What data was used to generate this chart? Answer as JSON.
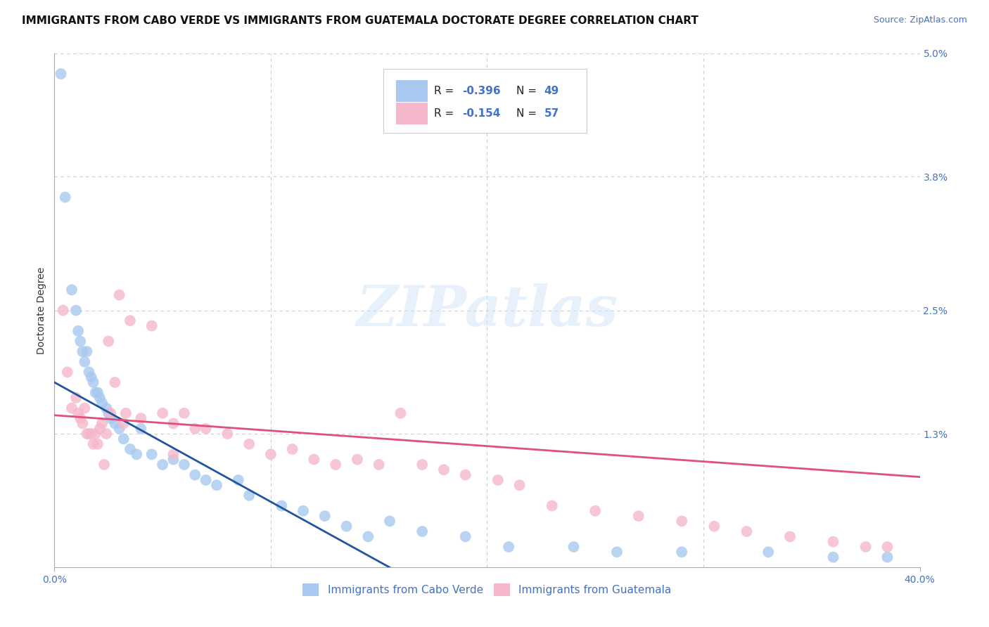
{
  "title": "IMMIGRANTS FROM CABO VERDE VS IMMIGRANTS FROM GUATEMALA DOCTORATE DEGREE CORRELATION CHART",
  "source": "Source: ZipAtlas.com",
  "ylabel": "Doctorate Degree",
  "xlim": [
    0.0,
    40.0
  ],
  "ylim": [
    0.0,
    5.0
  ],
  "x_ticks": [
    0.0,
    40.0
  ],
  "x_tick_labels": [
    "0.0%",
    "40.0%"
  ],
  "y_ticks": [
    1.3,
    2.5,
    3.8,
    5.0
  ],
  "y_tick_labels": [
    "1.3%",
    "2.5%",
    "3.8%",
    "5.0%"
  ],
  "legend_labels": [
    "Immigrants from Cabo Verde",
    "Immigrants from Guatemala"
  ],
  "watermark": "ZIPatlas",
  "blue_color": "#A8C8F0",
  "pink_color": "#F5B8CA",
  "blue_line_color": "#2255A0",
  "pink_line_color": "#E0507A",
  "cabo_verde_x": [
    0.3,
    0.5,
    0.8,
    1.0,
    1.1,
    1.2,
    1.3,
    1.4,
    1.5,
    1.6,
    1.7,
    1.8,
    1.9,
    2.0,
    2.1,
    2.2,
    2.4,
    2.5,
    2.6,
    2.8,
    3.0,
    3.2,
    3.5,
    3.8,
    4.0,
    4.5,
    5.0,
    5.5,
    6.0,
    6.5,
    7.0,
    7.5,
    8.5,
    9.0,
    10.5,
    11.5,
    12.5,
    13.5,
    14.5,
    15.5,
    17.0,
    19.0,
    21.0,
    24.0,
    26.0,
    29.0,
    33.0,
    36.0,
    38.5
  ],
  "cabo_verde_y": [
    4.8,
    3.6,
    2.7,
    2.5,
    2.3,
    2.2,
    2.1,
    2.0,
    2.1,
    1.9,
    1.85,
    1.8,
    1.7,
    1.7,
    1.65,
    1.6,
    1.55,
    1.5,
    1.45,
    1.4,
    1.35,
    1.25,
    1.15,
    1.1,
    1.35,
    1.1,
    1.0,
    1.05,
    1.0,
    0.9,
    0.85,
    0.8,
    0.85,
    0.7,
    0.6,
    0.55,
    0.5,
    0.4,
    0.3,
    0.45,
    0.35,
    0.3,
    0.2,
    0.2,
    0.15,
    0.15,
    0.15,
    0.1,
    0.1
  ],
  "guatemala_x": [
    0.4,
    0.6,
    0.8,
    1.0,
    1.1,
    1.2,
    1.3,
    1.4,
    1.5,
    1.6,
    1.7,
    1.8,
    1.9,
    2.0,
    2.1,
    2.2,
    2.4,
    2.5,
    2.6,
    2.8,
    3.0,
    3.2,
    3.5,
    4.0,
    4.5,
    5.0,
    5.5,
    6.0,
    6.5,
    7.0,
    8.0,
    9.0,
    10.0,
    11.0,
    12.0,
    13.0,
    14.0,
    15.0,
    16.0,
    17.0,
    18.0,
    19.0,
    20.5,
    21.5,
    23.0,
    25.0,
    27.0,
    29.0,
    30.5,
    32.0,
    34.0,
    36.0,
    37.5,
    38.5,
    2.3,
    3.3,
    5.5
  ],
  "guatemala_y": [
    2.5,
    1.9,
    1.55,
    1.65,
    1.5,
    1.45,
    1.4,
    1.55,
    1.3,
    1.3,
    1.3,
    1.2,
    1.3,
    1.2,
    1.35,
    1.4,
    1.3,
    2.2,
    1.5,
    1.8,
    2.65,
    1.4,
    2.4,
    1.45,
    2.35,
    1.5,
    1.4,
    1.5,
    1.35,
    1.35,
    1.3,
    1.2,
    1.1,
    1.15,
    1.05,
    1.0,
    1.05,
    1.0,
    1.5,
    1.0,
    0.95,
    0.9,
    0.85,
    0.8,
    0.6,
    0.55,
    0.5,
    0.45,
    0.4,
    0.35,
    0.3,
    0.25,
    0.2,
    0.2,
    1.0,
    1.5,
    1.1
  ],
  "cabo_verde_trend_x": [
    0.0,
    15.5
  ],
  "cabo_verde_trend_y": [
    1.8,
    0.0
  ],
  "guatemala_trend_x": [
    0.0,
    40.0
  ],
  "guatemala_trend_y": [
    1.48,
    0.88
  ],
  "grid_color": "#CCCCCC",
  "background_color": "#FFFFFF",
  "title_fontsize": 11,
  "axis_label_fontsize": 10,
  "tick_fontsize": 10,
  "accent_color": "#4472C4"
}
